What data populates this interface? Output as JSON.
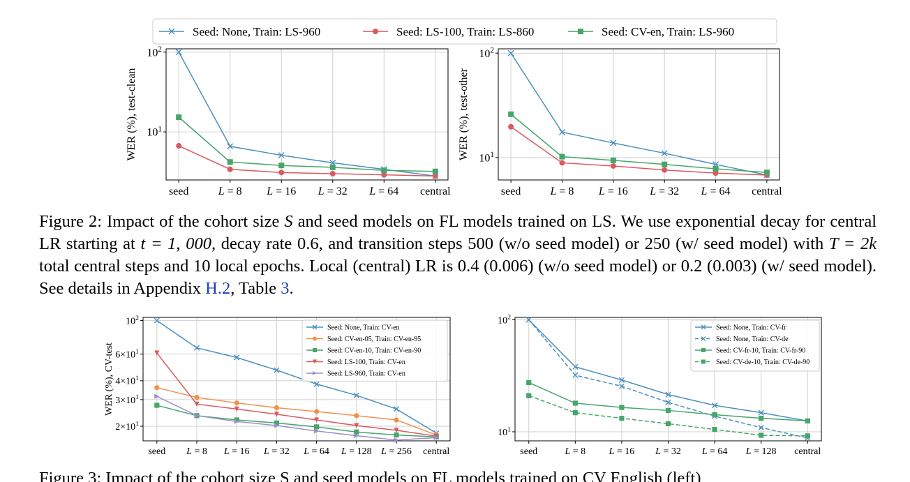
{
  "colors": {
    "blue": "#4a90bf",
    "red": "#d95a5f",
    "green": "#46a66a",
    "orange": "#f0914d",
    "purple": "#9c8fc9",
    "grid": "#d0d0d0",
    "link": "#1f3fb5"
  },
  "figure2": {
    "legend": [
      {
        "label": "Seed: None, Train: LS-960",
        "color": "blue",
        "marker": "x"
      },
      {
        "label": "Seed: LS-100, Train: LS-860",
        "color": "red",
        "marker": "o"
      },
      {
        "label": "Seed: CV-en, Train: LS-960",
        "color": "green",
        "marker": "s"
      }
    ],
    "caption": {
      "label": "Figure 2:",
      "text_a": "Impact of the cohort size",
      "S": "S",
      "text_b": "and seed models on FL models trained on LS. We use exponential decay for central LR starting at",
      "t_eq": "t = 1, 000,",
      "text_c": "decay rate",
      "rate": "0.6,",
      "text_d": "and transition steps",
      "steps1": "500",
      "text_e": "(w/o seed model) or",
      "steps2": "250",
      "text_f": "(w/ seed model) with",
      "T_eq": "T = 2k",
      "text_g": "total central steps and 10 local epochs. Local (central) LR is 0.4 (0.006) (w/o seed model) or 0.2 (0.003) (w/ seed model). See details in Appendix",
      "ref1": "H.2",
      "text_h": ", Table",
      "ref2": "3",
      "text_i": "."
    }
  },
  "figure3": {
    "caption_partial": "Figure 3: Impact of the cohort size S and seed models on FL models trained on CV English (left)"
  },
  "chart_data": [
    {
      "type": "line",
      "ylabel": "WER (%), test-clean",
      "yscale": "log",
      "ylim": [
        2.5,
        110
      ],
      "yticks": [
        {
          "value": 10,
          "label": "10^1"
        },
        {
          "value": 100,
          "label": "10^2"
        }
      ],
      "categories": [
        "seed",
        "L = 8",
        "L = 16",
        "L = 32",
        "L = 64",
        "central"
      ],
      "series": [
        {
          "name": "Seed: None, Train: LS-960",
          "color": "blue",
          "marker": "x",
          "dash": false,
          "values": [
            100,
            6.6,
            5.1,
            4.1,
            3.4,
            2.8
          ]
        },
        {
          "name": "Seed: LS-100, Train: LS-860",
          "color": "red",
          "marker": "o",
          "dash": false,
          "values": [
            6.7,
            3.4,
            3.1,
            3.0,
            2.9,
            2.8
          ]
        },
        {
          "name": "Seed: CV-en, Train: LS-960",
          "color": "green",
          "marker": "s",
          "dash": false,
          "values": [
            15.3,
            4.2,
            3.8,
            3.6,
            3.3,
            3.2
          ]
        }
      ]
    },
    {
      "type": "line",
      "ylabel": "WER (%), test-other",
      "yscale": "log",
      "ylim": [
        6.1,
        110
      ],
      "yticks": [
        {
          "value": 10,
          "label": "10^1"
        },
        {
          "value": 100,
          "label": "10^2"
        }
      ],
      "categories": [
        "seed",
        "L = 8",
        "L = 16",
        "L = 32",
        "L = 64",
        "central"
      ],
      "series": [
        {
          "name": "Seed: None, Train: LS-960",
          "color": "blue",
          "marker": "x",
          "dash": false,
          "values": [
            100,
            17.5,
            13.8,
            11.0,
            8.6,
            6.8
          ]
        },
        {
          "name": "Seed: LS-100, Train: LS-860",
          "color": "red",
          "marker": "o",
          "dash": false,
          "values": [
            19.7,
            8.9,
            8.3,
            7.6,
            7.1,
            6.8
          ]
        },
        {
          "name": "Seed: CV-en, Train: LS-960",
          "color": "green",
          "marker": "s",
          "dash": false,
          "values": [
            26.0,
            10.2,
            9.4,
            8.6,
            7.8,
            7.2
          ]
        }
      ]
    },
    {
      "type": "line",
      "ylabel": "WER (%), CV-test",
      "yscale": "log",
      "ylim": [
        16,
        105
      ],
      "yticks": [
        {
          "value": 20,
          "label": "2×10^1"
        },
        {
          "value": 30,
          "label": "3×10^1"
        },
        {
          "value": 40,
          "label": "4×10^1"
        },
        {
          "value": 60,
          "label": "6×10^1"
        },
        {
          "value": 100,
          "label": "10^2"
        }
      ],
      "categories": [
        "seed",
        "L = 8",
        "L = 16",
        "L = 32",
        "L = 64",
        "L = 128",
        "L = 256",
        "central"
      ],
      "legend_position": "upper right",
      "series": [
        {
          "name": "Seed: None, Train: CV-en",
          "color": "blue",
          "marker": "x",
          "dash": false,
          "values": [
            100,
            66,
            57,
            47,
            38,
            32,
            26,
            18
          ]
        },
        {
          "name": "Seed: CV-en-05, Train: CV-en-95",
          "color": "orange",
          "marker": "o",
          "dash": false,
          "values": [
            36,
            31,
            28.5,
            26.5,
            25,
            23.5,
            22,
            17.5
          ]
        },
        {
          "name": "Seed: CV-en-10, Train: CV-en-90",
          "color": "green",
          "marker": "s",
          "dash": false,
          "values": [
            27.5,
            23.5,
            22,
            21,
            19.8,
            18.3,
            17.5,
            17
          ]
        },
        {
          "name": "Seed: LS-100, Train: CV-en",
          "color": "red",
          "marker": "v",
          "dash": false,
          "values": [
            61,
            28,
            26,
            24,
            22,
            20.2,
            18.8,
            17.2
          ]
        },
        {
          "name": "Seed: LS-960, Train: CV-en",
          "color": "purple",
          "marker": ">",
          "dash": false,
          "values": [
            31.5,
            23.5,
            21.5,
            20.2,
            18.6,
            17.3,
            16.2,
            16.8
          ]
        }
      ]
    },
    {
      "type": "line",
      "ylabel": "",
      "yscale": "log",
      "ylim": [
        8.3,
        105
      ],
      "yticks": [
        {
          "value": 10,
          "label": "10^1"
        },
        {
          "value": 100,
          "label": "10^2"
        }
      ],
      "categories": [
        "seed",
        "L = 8",
        "L = 16",
        "L = 32",
        "L = 64",
        "L = 128",
        "central"
      ],
      "legend_position": "upper right",
      "series": [
        {
          "name": "Seed: None, Train: CV-fr",
          "color": "blue",
          "marker": "x",
          "dash": false,
          "values": [
            100,
            38,
            29,
            21.5,
            17.2,
            14.8,
            12.5
          ]
        },
        {
          "name": "Seed: None, Train: CV-de",
          "color": "blue",
          "marker": "x",
          "dash": true,
          "values": [
            100,
            32,
            25.5,
            18.3,
            13.8,
            10.9,
            8.8
          ]
        },
        {
          "name": "Seed: CV-fr-10, Train: CV-fr-90",
          "color": "green",
          "marker": "s",
          "dash": false,
          "values": [
            27.5,
            18,
            16.5,
            15.5,
            14.2,
            13.2,
            12.5
          ]
        },
        {
          "name": "Seed: CV-de-10, Train: CV-de-90",
          "color": "green",
          "marker": "s",
          "dash": true,
          "values": [
            21,
            14.8,
            13.2,
            11.8,
            10.5,
            9.3,
            9.2
          ]
        }
      ]
    }
  ]
}
